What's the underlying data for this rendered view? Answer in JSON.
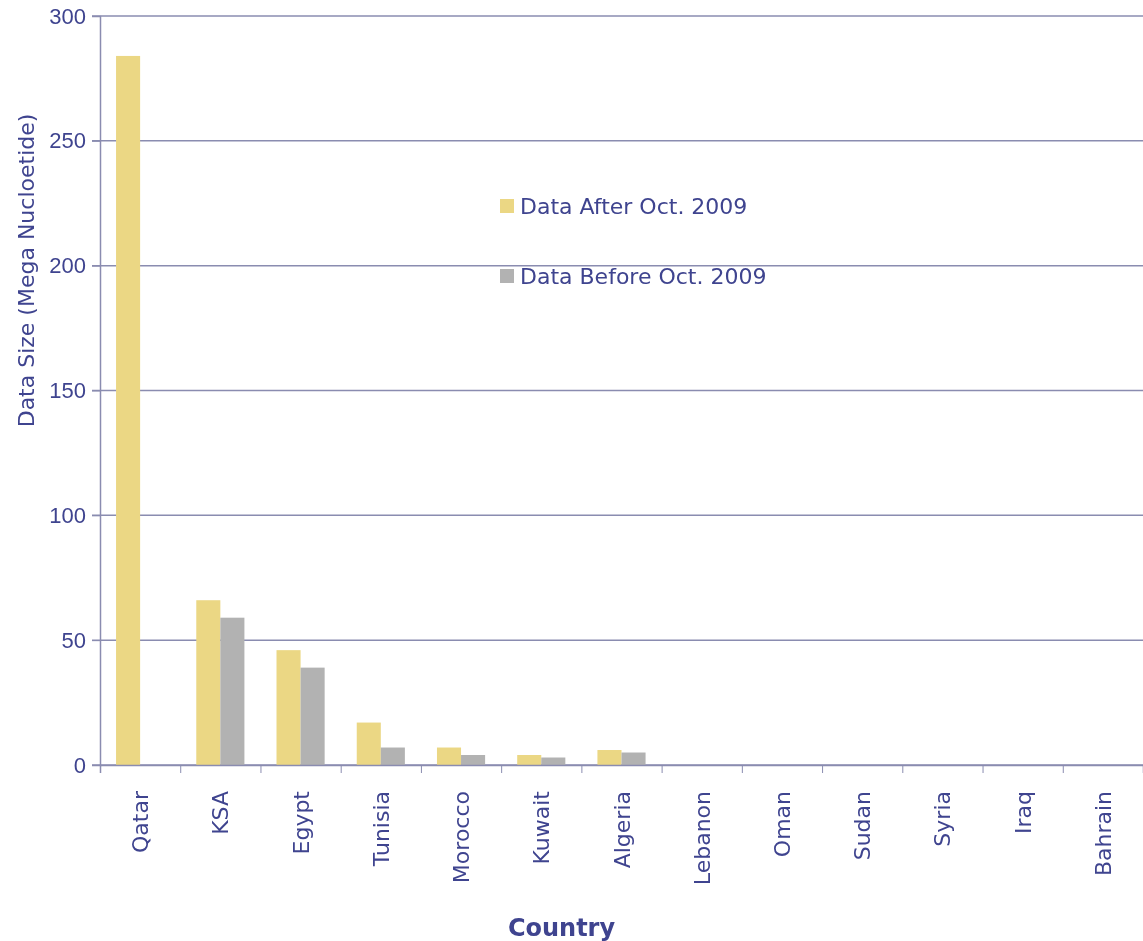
{
  "chart_data": {
    "type": "bar",
    "xlabel": "Country",
    "ylabel": "Data Size (Mega Nucloetide)",
    "categories": [
      "Qatar",
      "KSA",
      "Egypt",
      "Tunisia",
      "Morocco",
      "Kuwait",
      "Algeria",
      "Lebanon",
      "Oman",
      "Sudan",
      "Syria",
      "Iraq",
      "Bahrain"
    ],
    "series": [
      {
        "name": "Data After Oct. 2009",
        "color": "#ebd784",
        "values": [
          284,
          66,
          46,
          17,
          7,
          4,
          6,
          0,
          0,
          0,
          0,
          0,
          0
        ]
      },
      {
        "name": "Data Before Oct. 2009",
        "color": "#b2b2b2",
        "values": [
          0,
          59,
          39,
          7,
          4,
          3,
          5,
          0,
          0,
          0,
          0,
          0,
          0
        ]
      }
    ],
    "ylim": [
      0,
      300
    ],
    "yticks": [
      0,
      50,
      100,
      150,
      200,
      250,
      300
    ],
    "grid": "y",
    "legend": "top"
  }
}
